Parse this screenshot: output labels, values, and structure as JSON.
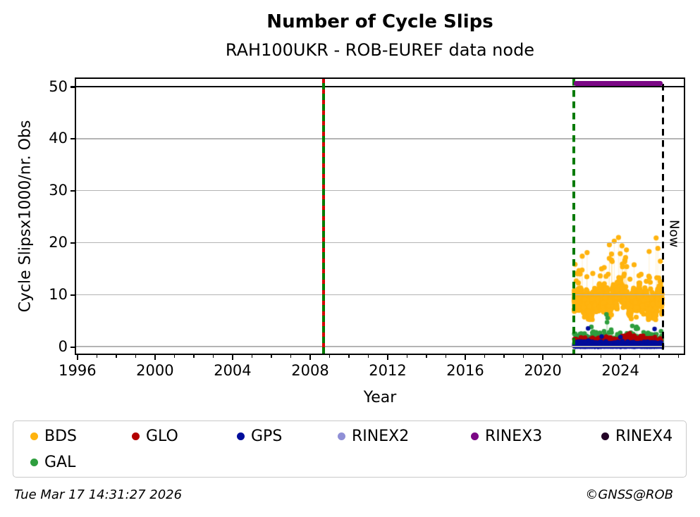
{
  "header": {
    "title": "Number of Cycle Slips",
    "subtitle": "RAH100UKR - ROB-EUREF data node"
  },
  "chart_data": {
    "type": "scatter",
    "title": "Number of Cycle Slips",
    "subtitle": "RAH100UKR - ROB-EUREF data node",
    "xlabel": "Year",
    "ylabel": "Cycle Slipsx1000/nr. Obs",
    "xlim": [
      1995.95,
      2027.25
    ],
    "ylim": [
      -1.2,
      51.5
    ],
    "xticks": [
      1996,
      2000,
      2004,
      2008,
      2012,
      2016,
      2020,
      2024
    ],
    "xminor_step": 1,
    "yticks": [
      0,
      10,
      20,
      30,
      40,
      50
    ],
    "grid": "horizontal",
    "grid_color": "#b4b4b4",
    "legend_position": "bottom",
    "hlines": [
      {
        "y": 50,
        "color": "#000000",
        "desc": "clip line at 50 across full x range"
      }
    ],
    "vlines": [
      {
        "x": 2008.7,
        "style": "green-solid-red-dash",
        "colors": [
          "#007a00",
          "#d40000"
        ],
        "desc": "station event marker"
      },
      {
        "x": 2021.62,
        "style": "dashed",
        "color": "#007a00",
        "desc": "start of available data"
      },
      {
        "x": 2026.21,
        "style": "dashed",
        "color": "#000000",
        "label": "Now",
        "desc": "current date marker"
      }
    ],
    "bars": [
      {
        "name": "RINEX3",
        "from": 2021.62,
        "to": 2026.18,
        "y": 50.6,
        "color": "#7b0785",
        "desc": "RINEX3 availability band clipped at top of axis"
      }
    ],
    "series": [
      {
        "name": "BDS",
        "color": "#ffb30e",
        "seed": 11,
        "n": 1650,
        "x_range": [
          2021.63,
          2026.17
        ],
        "model": "band",
        "base": 8.3,
        "wave1_amp": 1.0,
        "wave1_period": 1.05,
        "wave2_amp": 0.85,
        "wave2_period": 0.34,
        "bump_center": 2023.85,
        "bump_amp": 1.5,
        "bump_sd": 0.6,
        "noise_sd": 0.95,
        "min": 5.2,
        "max": 21.2,
        "spike_prob": 0.028,
        "spike_min": 2.2,
        "spike_max": 8.0,
        "fixed_points": [
          [
            2022.05,
            17.4
          ],
          [
            2022.3,
            18.1
          ],
          [
            2023.45,
            19.6
          ],
          [
            2023.7,
            20.3
          ],
          [
            2023.92,
            21.0
          ],
          [
            2024.1,
            19.4
          ],
          [
            2024.33,
            18.6
          ],
          [
            2025.5,
            18.3
          ],
          [
            2025.86,
            20.9
          ],
          [
            2025.95,
            18.9
          ]
        ],
        "stem_threshold": 13.0,
        "radius": 3.6,
        "summary": "dense band ~7-13 cycle slips x1000/nr.Obs from mid-2021.6 to 2026.2 with spikes to ~21"
      },
      {
        "name": "GAL",
        "color": "#2e9e3e",
        "seed": 22,
        "n": 520,
        "x_range": [
          2021.63,
          2026.15
        ],
        "model": "level",
        "mean": 1.0,
        "sd": 0.85,
        "min": 0.07,
        "max": 4.2,
        "fixed_points": [
          [
            2023.3,
            6.2
          ],
          [
            2023.36,
            5.5
          ],
          [
            2023.33,
            4.7
          ],
          [
            2024.85,
            3.8
          ],
          [
            2022.62,
            2.9
          ],
          [
            2022.68,
            2.6
          ]
        ],
        "stem_threshold": 3.2,
        "radius": 3.3,
        "summary": "scattered 0-4 with outliers to ~6"
      },
      {
        "name": "GLO",
        "color": "#b30000",
        "seed": 33,
        "n": 780,
        "x_range": [
          2021.63,
          2026.15
        ],
        "model": "level",
        "mean": 0.68,
        "sd": 0.46,
        "min": 0.04,
        "max": 2.1,
        "bump_center": 2024.45,
        "bump_amp": 0.7,
        "bump_sd": 0.28,
        "fixed_points": [
          [
            2024.5,
            2.55
          ],
          [
            2024.4,
            2.35
          ]
        ],
        "stem_threshold": 9,
        "radius": 3.2,
        "summary": "band 0-2 with small rise near 2024.5"
      },
      {
        "name": "GPS",
        "color": "#000d9b",
        "seed": 44,
        "n": 980,
        "x_range": [
          2021.63,
          2026.17
        ],
        "model": "level",
        "mean": 0.3,
        "sd": 0.26,
        "min": 0.02,
        "max": 1.5,
        "fixed_points": [
          [
            2022.35,
            3.5
          ],
          [
            2025.78,
            3.4
          ],
          [
            2023.05,
            1.95
          ],
          [
            2024.02,
            1.85
          ]
        ],
        "stem_threshold": 3.0,
        "radius": 3.2,
        "summary": "dense band 0-1 with rare outliers to ~3.5"
      }
    ]
  },
  "legend": {
    "items": [
      {
        "label": "BDS",
        "color": "#ffb30e"
      },
      {
        "label": "GLO",
        "color": "#b30000"
      },
      {
        "label": "GPS",
        "color": "#000d9b"
      },
      {
        "label": "RINEX2",
        "color": "#8f8fd6"
      },
      {
        "label": "RINEX3",
        "color": "#7b0785"
      },
      {
        "label": "RINEX4",
        "color": "#230427"
      },
      {
        "label": "GAL",
        "color": "#2e9e3e"
      }
    ]
  },
  "footer": {
    "timestamp": "Tue Mar 17 14:31:27 2026",
    "credit": "©GNSS@ROB"
  }
}
